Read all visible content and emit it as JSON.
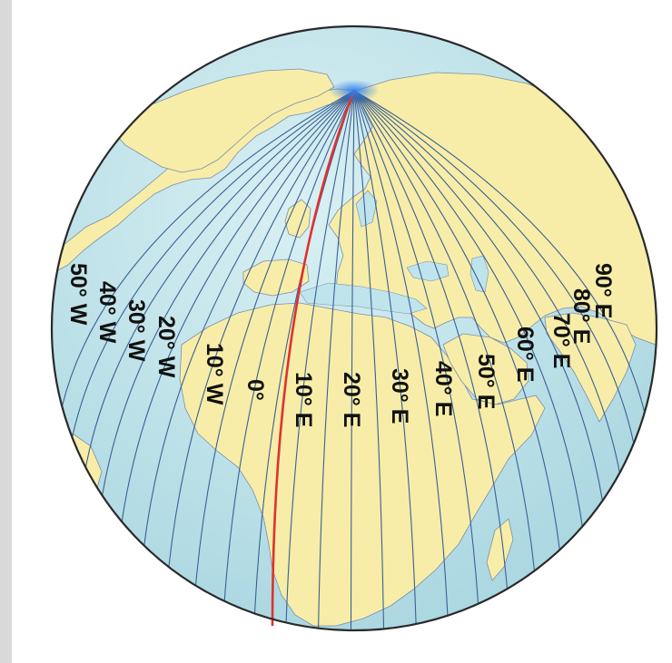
{
  "map": {
    "colors": {
      "ocean": "#bfe4ec",
      "land": "#f7eda8",
      "meridian": "#3b5f93",
      "prime_meridian": "#e0312e",
      "outline": "#2a2a2a",
      "pole_glow": "#2f7ff0"
    },
    "labels": {
      "w50": "50° W",
      "w40": "40° W",
      "w30": "30° W",
      "w20": "20° W",
      "w10": "10° W",
      "m0": "0°",
      "e10": "10° E",
      "e20": "20° E",
      "e30": "30° E",
      "e40": "40° E",
      "e50": "50° E",
      "e60": "60° E",
      "e70": "70° E",
      "e80": "80° E",
      "e90": "90° E"
    }
  }
}
